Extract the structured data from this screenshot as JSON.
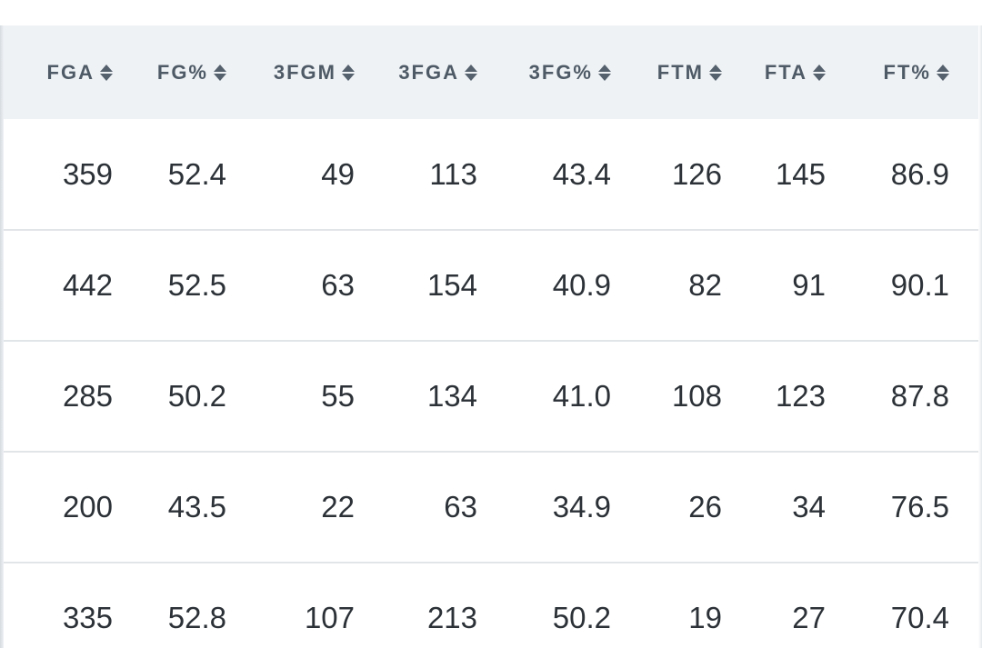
{
  "table": {
    "columns": [
      "FGA",
      "FG%",
      "3FGM",
      "3FGA",
      "3FG%",
      "FTM",
      "FTA",
      "FT%"
    ],
    "rows": [
      [
        "359",
        "52.4",
        "49",
        "113",
        "43.4",
        "126",
        "145",
        "86.9"
      ],
      [
        "442",
        "52.5",
        "63",
        "154",
        "40.9",
        "82",
        "91",
        "90.1"
      ],
      [
        "285",
        "50.2",
        "55",
        "134",
        "41.0",
        "108",
        "123",
        "87.8"
      ],
      [
        "200",
        "43.5",
        "22",
        "63",
        "34.9",
        "26",
        "34",
        "76.5"
      ],
      [
        "335",
        "52.8",
        "107",
        "213",
        "50.2",
        "19",
        "27",
        "70.4"
      ]
    ]
  },
  "icons": {
    "sort": "sort-toggle-icon"
  },
  "colors": {
    "header_bg": "#eef2f5",
    "header_text": "#4e5a66",
    "cell_text": "#2b3137",
    "row_divider": "#e2e5e8"
  }
}
